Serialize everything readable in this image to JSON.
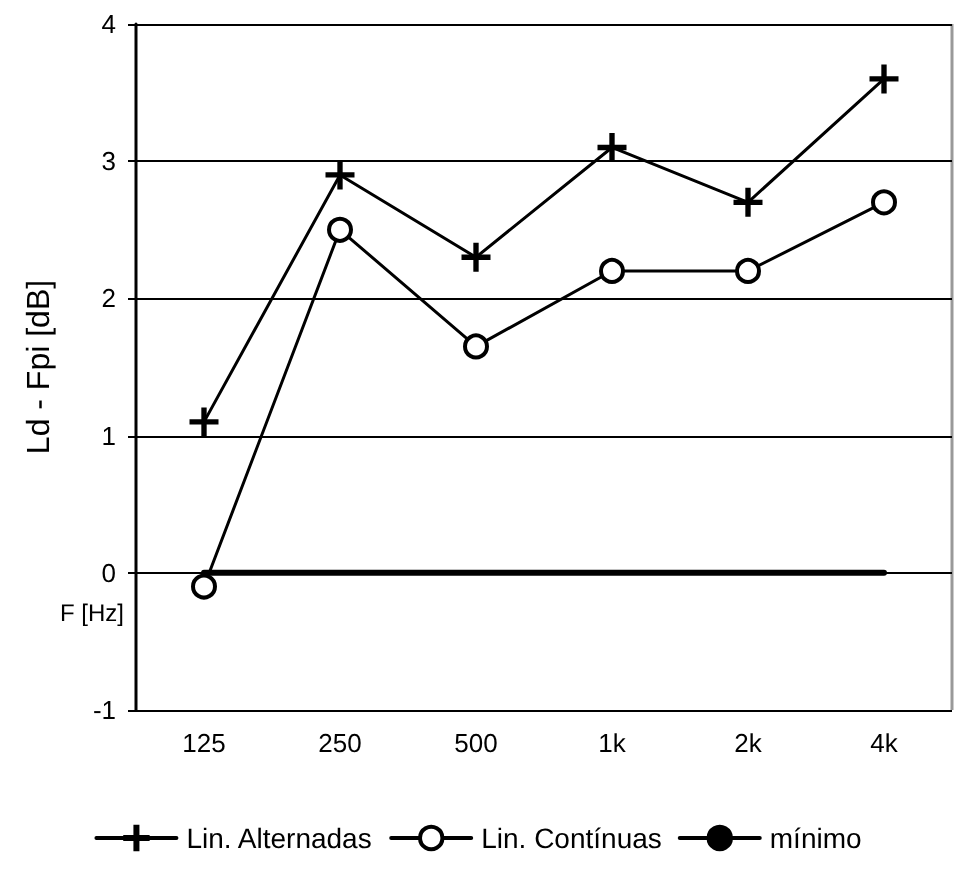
{
  "chart_data": {
    "type": "line",
    "xlabel": "F [Hz]",
    "ylabel": "Ld - Fpi [dB]",
    "categories": [
      "125",
      "250",
      "500",
      "1k",
      "2k",
      "4k"
    ],
    "series": [
      {
        "name": "Lin. Alternadas",
        "color": "#000000",
        "marker": "cross",
        "values": [
          1.1,
          2.9,
          2.3,
          3.1,
          2.7,
          3.6
        ]
      },
      {
        "name": "Lin. Contínuas",
        "color": "#000000",
        "marker": "circle",
        "values": [
          -0.1,
          2.5,
          1.65,
          2.2,
          2.2,
          2.7
        ]
      },
      {
        "name": "mínimo",
        "color": "#000000",
        "marker": "none",
        "values": [
          0,
          0,
          0,
          0,
          0,
          0
        ]
      }
    ],
    "ylim": [
      -1,
      4
    ],
    "yticks": [
      -1,
      0,
      1,
      2,
      3,
      4
    ],
    "grid": "y",
    "legend": "bottom",
    "line_style": "solid"
  }
}
